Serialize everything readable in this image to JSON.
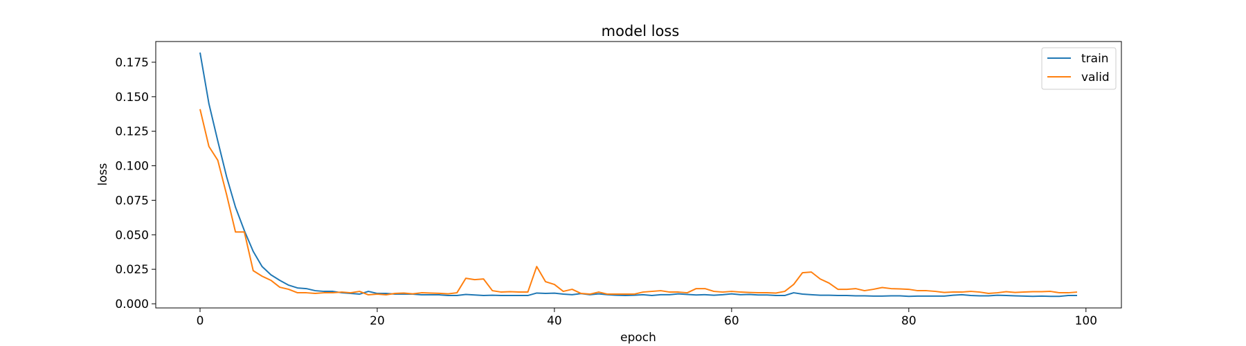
{
  "chart_data": {
    "type": "line",
    "title": "model loss",
    "xlabel": "epoch",
    "ylabel": "loss",
    "xlim": [
      -5,
      104
    ],
    "ylim": [
      -0.003,
      0.19
    ],
    "xticks": [
      0,
      20,
      40,
      60,
      80,
      100
    ],
    "xtick_labels": [
      "0",
      "20",
      "40",
      "60",
      "80",
      "100"
    ],
    "yticks": [
      0.0,
      0.025,
      0.05,
      0.075,
      0.1,
      0.125,
      0.15,
      0.175
    ],
    "ytick_labels": [
      "0.000",
      "0.025",
      "0.050",
      "0.075",
      "0.100",
      "0.125",
      "0.150",
      "0.175"
    ],
    "grid": false,
    "legend_position": "top-right",
    "colors": {
      "train": "#1f77b4",
      "valid": "#ff7f0e"
    },
    "x": [
      0,
      1,
      2,
      3,
      4,
      5,
      6,
      7,
      8,
      9,
      10,
      11,
      12,
      13,
      14,
      15,
      16,
      17,
      18,
      19,
      20,
      21,
      22,
      23,
      24,
      25,
      26,
      27,
      28,
      29,
      30,
      31,
      32,
      33,
      34,
      35,
      36,
      37,
      38,
      39,
      40,
      41,
      42,
      43,
      44,
      45,
      46,
      47,
      48,
      49,
      50,
      51,
      52,
      53,
      54,
      55,
      56,
      57,
      58,
      59,
      60,
      61,
      62,
      63,
      64,
      65,
      66,
      67,
      68,
      69,
      70,
      71,
      72,
      73,
      74,
      75,
      76,
      77,
      78,
      79,
      80,
      81,
      82,
      83,
      84,
      85,
      86,
      87,
      88,
      89,
      90,
      91,
      92,
      93,
      94,
      95,
      96,
      97,
      98,
      99
    ],
    "series": [
      {
        "name": "train",
        "values": [
          0.182,
          0.145,
          0.118,
          0.092,
          0.07,
          0.053,
          0.038,
          0.027,
          0.021,
          0.017,
          0.0135,
          0.0115,
          0.011,
          0.0095,
          0.009,
          0.009,
          0.008,
          0.0075,
          0.007,
          0.009,
          0.0075,
          0.0075,
          0.007,
          0.007,
          0.007,
          0.0065,
          0.0065,
          0.0065,
          0.006,
          0.006,
          0.0068,
          0.0064,
          0.006,
          0.0062,
          0.006,
          0.006,
          0.006,
          0.006,
          0.0078,
          0.0075,
          0.0077,
          0.007,
          0.0066,
          0.0074,
          0.0066,
          0.0072,
          0.0066,
          0.0062,
          0.006,
          0.0062,
          0.0066,
          0.006,
          0.0066,
          0.0066,
          0.0072,
          0.0068,
          0.0064,
          0.0066,
          0.0062,
          0.0066,
          0.0072,
          0.0066,
          0.0068,
          0.0064,
          0.0064,
          0.006,
          0.006,
          0.008,
          0.007,
          0.0066,
          0.0062,
          0.0062,
          0.006,
          0.006,
          0.0058,
          0.0058,
          0.0056,
          0.0056,
          0.0058,
          0.0058,
          0.0054,
          0.0056,
          0.0056,
          0.0056,
          0.0056,
          0.0062,
          0.0066,
          0.006,
          0.0058,
          0.0058,
          0.0062,
          0.006,
          0.0058,
          0.0056,
          0.0054,
          0.0056,
          0.0054,
          0.0054,
          0.006,
          0.006
        ]
      },
      {
        "name": "valid",
        "values": [
          0.141,
          0.114,
          0.104,
          0.079,
          0.052,
          0.052,
          0.024,
          0.02,
          0.017,
          0.012,
          0.0105,
          0.008,
          0.008,
          0.0075,
          0.008,
          0.008,
          0.0085,
          0.008,
          0.009,
          0.0065,
          0.007,
          0.0065,
          0.0075,
          0.0078,
          0.0072,
          0.008,
          0.0078,
          0.0076,
          0.0072,
          0.008,
          0.0185,
          0.0175,
          0.018,
          0.0095,
          0.0085,
          0.0088,
          0.0085,
          0.0085,
          0.027,
          0.016,
          0.014,
          0.009,
          0.0105,
          0.0075,
          0.007,
          0.0085,
          0.007,
          0.007,
          0.007,
          0.007,
          0.0085,
          0.009,
          0.0095,
          0.0085,
          0.0085,
          0.008,
          0.011,
          0.011,
          0.009,
          0.0085,
          0.009,
          0.0085,
          0.0082,
          0.008,
          0.008,
          0.0078,
          0.009,
          0.014,
          0.0225,
          0.023,
          0.018,
          0.015,
          0.0105,
          0.0105,
          0.011,
          0.0095,
          0.0105,
          0.0118,
          0.011,
          0.0108,
          0.0105,
          0.0095,
          0.0095,
          0.009,
          0.0082,
          0.0085,
          0.0085,
          0.009,
          0.0085,
          0.0075,
          0.008,
          0.0088,
          0.0082,
          0.0085,
          0.0088,
          0.0088,
          0.009,
          0.008,
          0.008,
          0.0085
        ]
      }
    ]
  }
}
